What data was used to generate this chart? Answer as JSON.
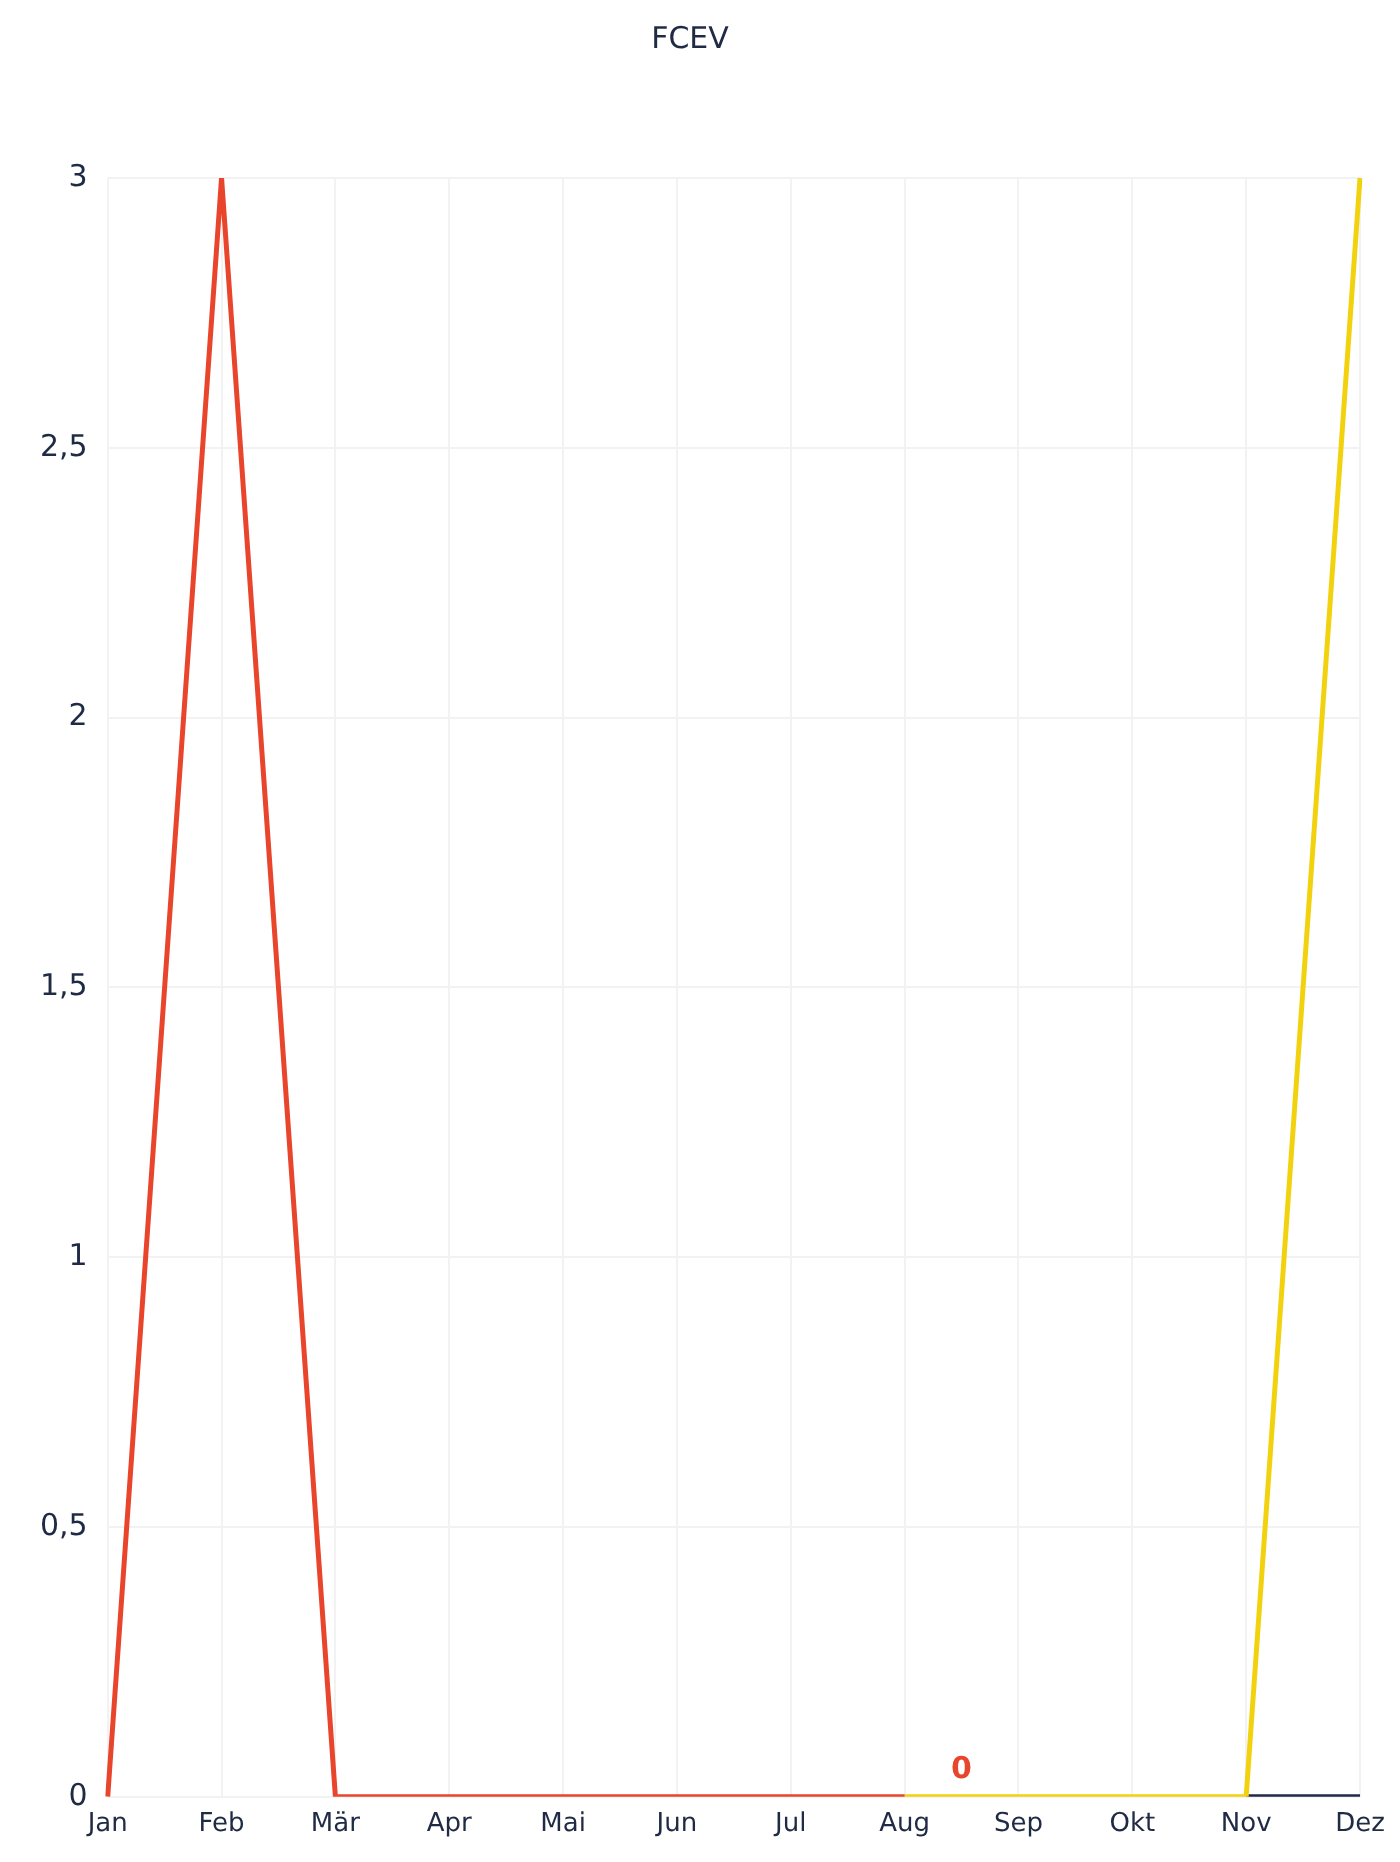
{
  "chart_data": {
    "type": "line",
    "title": "FCEV",
    "categories": [
      "Jan",
      "Feb",
      "Mär",
      "Apr",
      "Mai",
      "Jun",
      "Jul",
      "Aug",
      "Sep",
      "Okt",
      "Nov",
      "Dez"
    ],
    "series": [
      {
        "color": "#1f2a44",
        "values": [
          null,
          null,
          null,
          null,
          null,
          null,
          null,
          null,
          null,
          null,
          0,
          0
        ]
      },
      {
        "color": "#f2d20f",
        "values": [
          null,
          null,
          null,
          null,
          null,
          null,
          null,
          0,
          0,
          0,
          0,
          3
        ]
      },
      {
        "color": "#e8452c",
        "values": [
          0,
          3,
          0,
          0,
          0,
          0,
          0,
          0,
          null,
          null,
          null,
          null
        ]
      }
    ],
    "ylim": [
      0,
      3
    ],
    "yticks": [
      0,
      {
        "value": 0.5,
        "label": "0,5"
      },
      1,
      {
        "value": 1.5,
        "label": "1,5"
      },
      2,
      {
        "value": 2.5,
        "label": "2,5"
      },
      3
    ],
    "grid": true,
    "legend": false,
    "marker": "none",
    "line_style": "solid",
    "annotations": [
      "0"
    ]
  }
}
